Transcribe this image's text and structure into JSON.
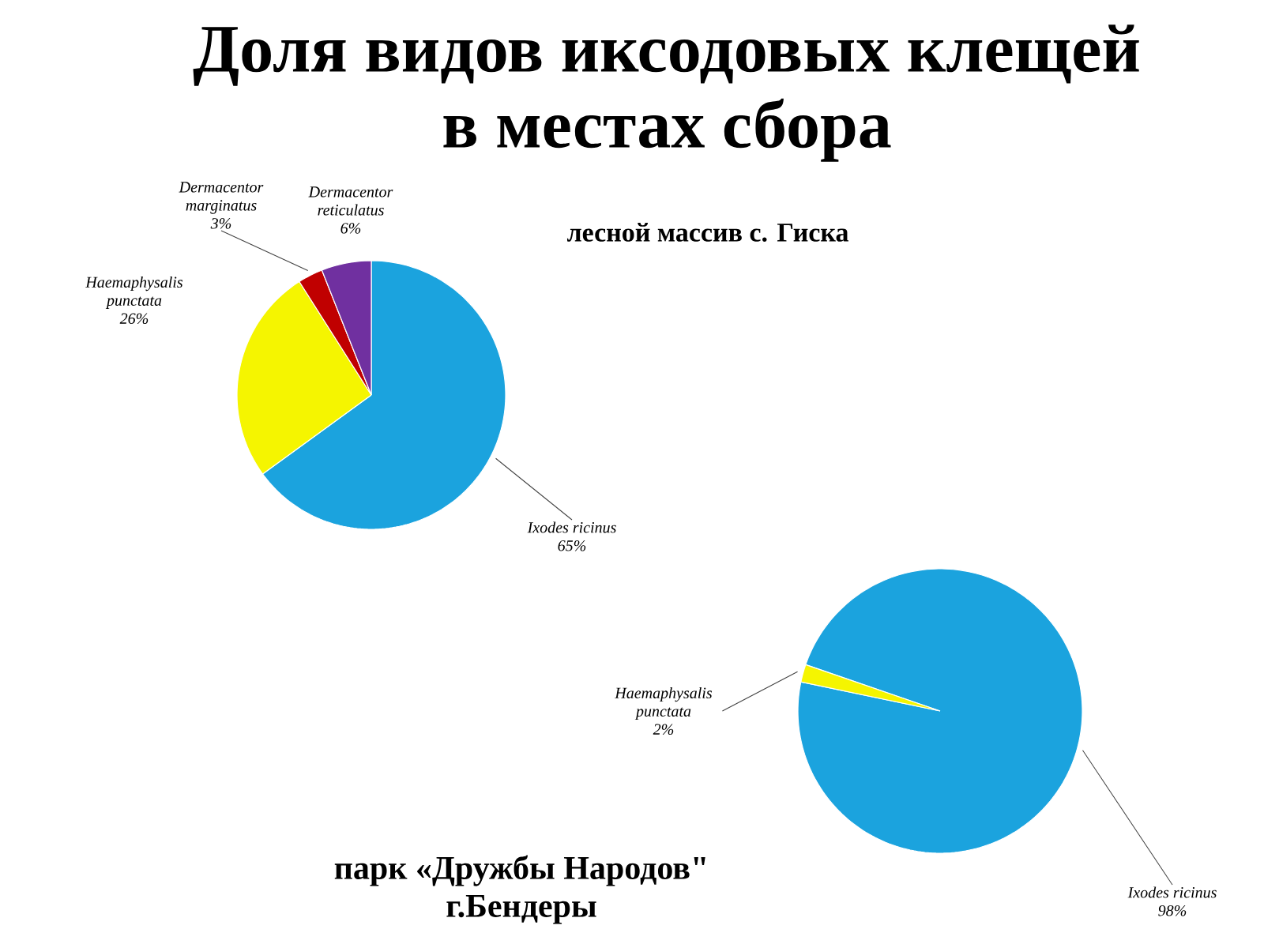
{
  "chart_data": [
    {
      "type": "pie",
      "title": "Доля видов иксодовых клещей в местах сбора",
      "subtitle": "лесной массив с. Гиска",
      "categories": [
        "Ixodes ricinus",
        "Haemaphysalis punctata",
        "Dermacentor marginatus",
        "Dermacentor reticulatus"
      ],
      "values": [
        65,
        26,
        3,
        6
      ],
      "value_labels": [
        "65%",
        "26%",
        "3%",
        "6%"
      ],
      "colors": [
        "#1ba3de",
        "#f5f500",
        "#c00000",
        "#7030a0"
      ]
    },
    {
      "type": "pie",
      "title": "парк «Дружбы Народов\" г.Бендеры",
      "categories": [
        "Ixodes ricinus",
        "Haemaphysalis punctata"
      ],
      "values": [
        98,
        2
      ],
      "value_labels": [
        "98%",
        "2%"
      ],
      "colors": [
        "#1ba3de",
        "#f5f500"
      ]
    }
  ]
}
